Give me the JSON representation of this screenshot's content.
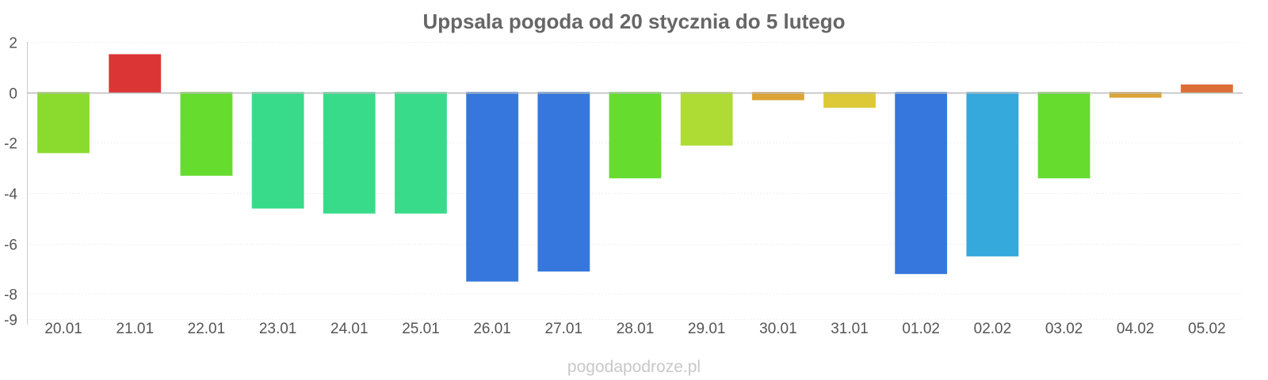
{
  "chart_data": {
    "type": "bar",
    "title": "Uppsala pogoda od 20 stycznia do 5 lutego",
    "categories": [
      "20.01",
      "21.01",
      "22.01",
      "23.01",
      "24.01",
      "25.01",
      "26.01",
      "27.01",
      "28.01",
      "29.01",
      "30.01",
      "31.01",
      "01.02",
      "02.02",
      "03.02",
      "04.02",
      "05.02"
    ],
    "values": [
      -2.4,
      1.5,
      -3.3,
      -4.6,
      -4.8,
      -4.8,
      -7.5,
      -7.1,
      -3.4,
      -2.1,
      -0.3,
      -0.6,
      -7.2,
      -6.5,
      -3.4,
      -0.2,
      0.3
    ],
    "colors": [
      "#8bdb2f",
      "#dc3535",
      "#66dc2f",
      "#38db89",
      "#38db89",
      "#38db89",
      "#3577dc",
      "#3577dc",
      "#66dc2f",
      "#aedc35",
      "#dca435",
      "#dcc935",
      "#3577dc",
      "#35a8dc",
      "#66dc2f",
      "#dca435",
      "#dc6d35"
    ],
    "yticks": [
      2,
      0,
      -2,
      -4,
      -6,
      -8,
      -9
    ],
    "ylim": [
      -9,
      2
    ],
    "grid": true,
    "legend": "none",
    "xlabel": "",
    "ylabel": ""
  },
  "footer": "pogodapodroze.pl"
}
